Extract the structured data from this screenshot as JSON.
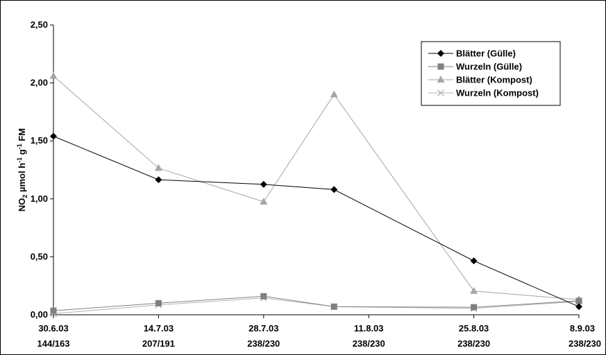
{
  "chart_data": {
    "type": "line",
    "title": "",
    "xlabel": "",
    "ylabel": {
      "main": "NO",
      "sub": "2",
      "rest1": " µmol h",
      "sup1": "-1",
      "rest2": " g",
      "sup2": "-1",
      "rest3": " FM"
    },
    "ylim": [
      0,
      2.5
    ],
    "y_ticks": [
      "0,00",
      "0,50",
      "1,00",
      "1,50",
      "2,00",
      "2,50"
    ],
    "categories": [
      {
        "date": "30.6.03",
        "sub": "144/163"
      },
      {
        "date": "14.7.03",
        "sub": "207/191"
      },
      {
        "date": "28.7.03",
        "sub": "238/230"
      },
      {
        "date": "11.8.03",
        "sub": "238/230"
      },
      {
        "date": "25.8.03",
        "sub": "238/230"
      },
      {
        "date": "8.9.03",
        "sub": "238/230"
      }
    ],
    "x_tick_positions": [
      0,
      1,
      2,
      3,
      4,
      5
    ],
    "series": [
      {
        "name": "Blätter (Gülle)",
        "color": "#000000",
        "marker": "diamond",
        "points": [
          [
            0,
            1.54
          ],
          [
            1,
            1.165
          ],
          [
            2,
            1.125
          ],
          [
            2.67,
            1.08
          ],
          [
            4,
            0.465
          ],
          [
            5,
            0.07
          ]
        ]
      },
      {
        "name": "Wurzeln (Gülle)",
        "color": "#808080",
        "marker": "square",
        "points": [
          [
            0,
            0.035
          ],
          [
            1,
            0.1
          ],
          [
            2,
            0.16
          ],
          [
            2.67,
            0.07
          ],
          [
            4,
            0.065
          ],
          [
            5,
            0.12
          ]
        ]
      },
      {
        "name": "Blätter (Kompost)",
        "color": "#a6a6a6",
        "marker": "triangle",
        "points": [
          [
            0,
            2.06
          ],
          [
            1,
            1.265
          ],
          [
            2,
            0.975
          ],
          [
            2.67,
            1.9
          ],
          [
            4,
            0.205
          ],
          [
            5,
            0.13
          ]
        ]
      },
      {
        "name": "Wurzeln (Kompost)",
        "color": "#b3b3b3",
        "marker": "x",
        "points": [
          [
            0,
            0.01
          ],
          [
            1,
            0.085
          ],
          [
            2,
            0.145
          ],
          [
            2.67,
            0.07
          ],
          [
            4,
            0.055
          ],
          [
            5,
            0.115
          ]
        ]
      }
    ],
    "legend_position": "top-right",
    "grid": false
  }
}
